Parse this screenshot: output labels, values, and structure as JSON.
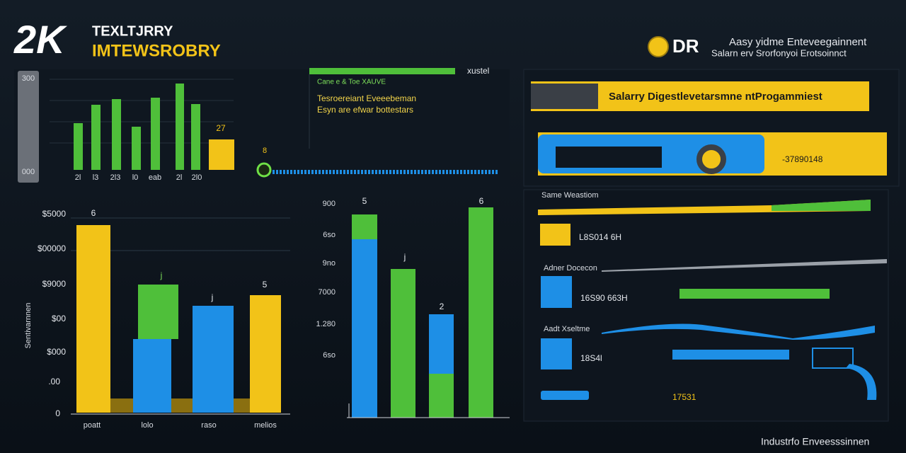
{
  "header": {
    "logo": "2K",
    "title_line_1": "TEXLTJRRY",
    "title_line_2": "IMTEWSROBRY"
  },
  "brand": {
    "logo": "DR",
    "line_1": "Aasy yidme Enteveegainnent",
    "line_2": "Salarn erv Srorfonyoi Erotsoinnct"
  },
  "mini_chart": {
    "scale_top": "300",
    "scale_bottom": "000",
    "bar_label": "27",
    "x_labels": [
      "2l",
      "l3",
      "2l3",
      "l0",
      "eab",
      "2l",
      "2l0"
    ]
  },
  "info_panel": {
    "tag": "xustel",
    "line_1": "Cane e & Toe XAUVE",
    "line_2": "Tesroereiant Eveeebeman",
    "line_3": "Esyn are efwar bottestars",
    "node_label": "8"
  },
  "banner": {
    "title": "Salarry Digestlevetarsmne ntProgammiest",
    "value": "-37890148"
  },
  "left_chart": {
    "axis_title": "Sentivarnnen",
    "y_labels": [
      "$5000",
      "$00000",
      "$9000",
      "$00",
      "$000",
      ".00",
      "0"
    ],
    "bar_labels": [
      "6",
      "j",
      "j",
      "5"
    ],
    "x_labels": [
      "poatt",
      "lolo",
      "raso",
      "melios"
    ]
  },
  "middle_chart": {
    "y_labels": [
      "900",
      "6so",
      "9no",
      "7000",
      "1.280",
      "6so"
    ],
    "bar_labels": [
      "5",
      "j",
      "2",
      "6"
    ]
  },
  "side_list": {
    "items": [
      {
        "title": "Same Weastiom",
        "value": "L8S014 6H"
      },
      {
        "title": "Adner Docecon",
        "value": "16S90 663H"
      },
      {
        "title": "Aadt Xseltme",
        "value": "18S4l"
      }
    ],
    "footer_value": "17531"
  },
  "footer": "Industrfo Enveesssinnen"
}
